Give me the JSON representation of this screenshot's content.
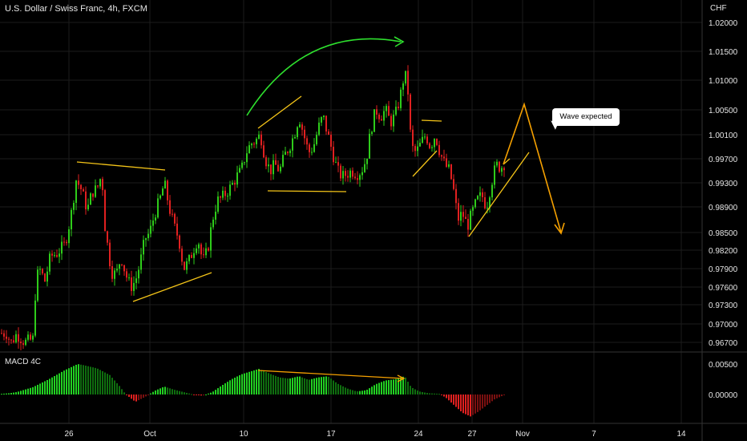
{
  "header": {
    "symbol": "U.S. Dollar / Swiss Franc, 4h, FXCM",
    "currency": "CHF"
  },
  "indicator": {
    "label": "MACD 4C"
  },
  "annotation": {
    "callout_text": "Wave expected"
  },
  "colors": {
    "up": "#2ecc1a",
    "down": "#e02020",
    "trendline": "#f5c518",
    "arc": "#2ee02e",
    "projection": "#f5a000",
    "divergence": "#f5a000",
    "grid": "#1c1c1c"
  },
  "chart_data": [
    {
      "type": "candlestick",
      "title": "",
      "x_ticks": [
        "26",
        "Oct",
        "10",
        "17",
        "24",
        "27",
        "Nov",
        "7",
        "14"
      ],
      "y_ticks": [
        "1.02000",
        "1.01500",
        "1.01000",
        "1.00500",
        "1.00100",
        "0.99700",
        "0.99300",
        "0.98900",
        "0.98500",
        "0.98200",
        "0.97900",
        "0.97600",
        "0.97300",
        "0.97000",
        "0.96700"
      ],
      "ylim": [
        0.9665,
        1.0205
      ],
      "close_path": [
        [
          0,
          0.9685
        ],
        [
          8,
          0.9685
        ],
        [
          12,
          0.9668
        ],
        [
          20,
          0.9684
        ],
        [
          30,
          0.967
        ],
        [
          40,
          0.9675
        ],
        [
          44,
          0.977
        ],
        [
          48,
          0.979
        ],
        [
          55,
          0.977
        ],
        [
          62,
          0.981
        ],
        [
          70,
          0.9815
        ],
        [
          80,
          0.983
        ],
        [
          88,
          0.988
        ],
        [
          94,
          0.9935
        ],
        [
          100,
          0.992
        ],
        [
          108,
          0.9885
        ],
        [
          114,
          0.9915
        ],
        [
          120,
          0.992
        ],
        [
          126,
          0.9945
        ],
        [
          130,
          0.986
        ],
        [
          134,
          0.982
        ],
        [
          138,
          0.9785
        ],
        [
          144,
          0.978
        ],
        [
          150,
          0.981
        ],
        [
          156,
          0.978
        ],
        [
          162,
          0.976
        ],
        [
          168,
          0.977
        ],
        [
          174,
          0.98
        ],
        [
          180,
          0.984
        ],
        [
          186,
          0.985
        ],
        [
          192,
          0.988
        ],
        [
          198,
          0.99
        ],
        [
          204,
          0.993
        ],
        [
          210,
          0.989
        ],
        [
          216,
          0.986
        ],
        [
          222,
          0.984
        ],
        [
          228,
          0.979
        ],
        [
          234,
          0.98
        ],
        [
          240,
          0.982
        ],
        [
          246,
          0.984
        ],
        [
          252,
          0.98
        ],
        [
          258,
          0.982
        ],
        [
          264,
          0.987
        ],
        [
          270,
          0.99
        ],
        [
          276,
          0.9905
        ],
        [
          282,
          0.9915
        ],
        [
          288,
          0.9925
        ],
        [
          294,
          0.994
        ],
        [
          300,
          0.995
        ],
        [
          306,
          0.998
        ],
        [
          312,
          0.9995
        ],
        [
          318,
          1.0
        ],
        [
          324,
          1.001
        ],
        [
          330,
          0.997
        ],
        [
          336,
          0.995
        ],
        [
          342,
          0.996
        ],
        [
          348,
          0.995
        ],
        [
          354,
          0.9975
        ],
        [
          360,
          0.999
        ],
        [
          366,
          1.001
        ],
        [
          372,
          1.004
        ],
        [
          378,
          1.001
        ],
        [
          384,
          0.998
        ],
        [
          390,
          0.999
        ],
        [
          396,
          1.002
        ],
        [
          402,
          1.004
        ],
        [
          408,
          1.001
        ],
        [
          414,
          0.998
        ],
        [
          420,
          0.995
        ],
        [
          426,
          0.994
        ],
        [
          432,
          0.9945
        ],
        [
          438,
          0.995
        ],
        [
          444,
          0.9945
        ],
        [
          450,
          0.995
        ],
        [
          456,
          0.997
        ],
        [
          462,
          1.002
        ],
        [
          468,
          1.005
        ],
        [
          474,
          1.004
        ],
        [
          480,
          1.005
        ],
        [
          486,
          1.003
        ],
        [
          492,
          1.004
        ],
        [
          498,
          1.007
        ],
        [
          504,
          1.0115
        ],
        [
          508,
          1.008
        ],
        [
          512,
          0.999
        ],
        [
          518,
          0.998
        ],
        [
          524,
          0.9995
        ],
        [
          530,
          1.001
        ],
        [
          536,
          0.999
        ],
        [
          542,
          1.001
        ],
        [
          548,
          0.998
        ],
        [
          554,
          0.996
        ],
        [
          560,
          0.995
        ],
        [
          566,
          0.991
        ],
        [
          570,
          0.987
        ],
        [
          576,
          0.988
        ],
        [
          582,
          0.986
        ],
        [
          588,
          0.988
        ],
        [
          594,
          0.99
        ],
        [
          600,
          0.991
        ],
        [
          606,
          0.989
        ],
        [
          612,
          0.993
        ],
        [
          618,
          0.996
        ],
        [
          624,
          0.9955
        ],
        [
          628,
          0.9962
        ]
      ]
    },
    {
      "type": "bar",
      "title": "MACD 4C",
      "y_ticks": [
        "0.00500",
        "0.00000"
      ],
      "ylim": [
        -0.0042,
        0.006
      ],
      "histogram_path": [
        [
          0,
          0.0001
        ],
        [
          10,
          0.0002
        ],
        [
          20,
          0.0004
        ],
        [
          40,
          0.0012
        ],
        [
          60,
          0.0025
        ],
        [
          80,
          0.004
        ],
        [
          96,
          0.005
        ],
        [
          104,
          0.0048
        ],
        [
          120,
          0.0043
        ],
        [
          136,
          0.0032
        ],
        [
          148,
          0.0014
        ],
        [
          156,
          0.0
        ],
        [
          168,
          -0.0012
        ],
        [
          180,
          -0.0004
        ],
        [
          192,
          0.0006
        ],
        [
          204,
          0.0013
        ],
        [
          216,
          0.0008
        ],
        [
          228,
          0.0004
        ],
        [
          240,
          0.0
        ],
        [
          252,
          -0.0002
        ],
        [
          264,
          0.0004
        ],
        [
          276,
          0.0015
        ],
        [
          288,
          0.0025
        ],
        [
          300,
          0.0033
        ],
        [
          312,
          0.0038
        ],
        [
          322,
          0.0042
        ],
        [
          336,
          0.0034
        ],
        [
          348,
          0.0028
        ],
        [
          360,
          0.0026
        ],
        [
          372,
          0.003
        ],
        [
          384,
          0.0024
        ],
        [
          396,
          0.0028
        ],
        [
          408,
          0.003
        ],
        [
          420,
          0.0018
        ],
        [
          432,
          0.001
        ],
        [
          444,
          0.0005
        ],
        [
          456,
          0.0007
        ],
        [
          468,
          0.0017
        ],
        [
          480,
          0.0023
        ],
        [
          492,
          0.0025
        ],
        [
          504,
          0.003
        ],
        [
          512,
          0.0012
        ],
        [
          522,
          0.0005
        ],
        [
          534,
          0.0002
        ],
        [
          548,
          0.0001
        ],
        [
          556,
          -0.0006
        ],
        [
          566,
          -0.0018
        ],
        [
          576,
          -0.003
        ],
        [
          586,
          -0.0036
        ],
        [
          596,
          -0.0028
        ],
        [
          606,
          -0.0018
        ],
        [
          616,
          -0.0008
        ],
        [
          628,
          -0.0001
        ]
      ]
    }
  ]
}
